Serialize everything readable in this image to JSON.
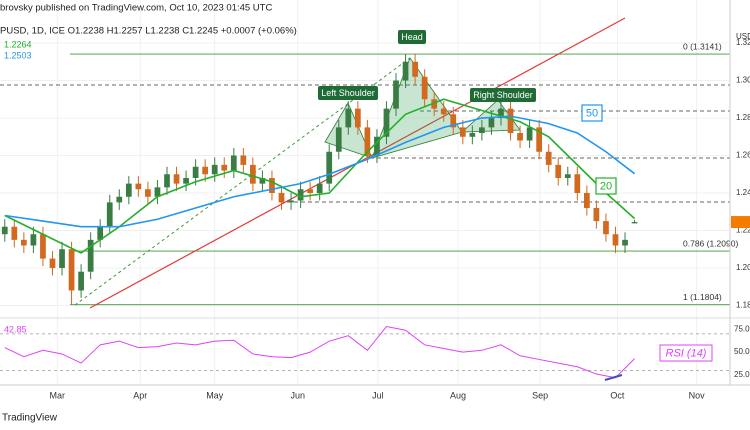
{
  "header": "brovsky published on TradingView.com, Oct 10, 2023 01:45 UTC",
  "symbol_line": "PUSD, 1D, ICE O1.2238 H1.2257 L1.2238 C1.2245 +0.0007 (+0.06%)",
  "currency": "USD",
  "footer": "TradingView",
  "annotations": {
    "head": "Head",
    "left_shoulder": "Left Shoulder",
    "right_shoulder": "Right Shoulder"
  },
  "chart_data": {
    "type": "candlestick",
    "xlim": [
      -0.5,
      76
    ],
    "xticks": [
      {
        "value": 5.5,
        "label": "Mar"
      },
      {
        "value": 14.2,
        "label": "Apr"
      },
      {
        "value": 22,
        "label": "May"
      },
      {
        "value": 30.7,
        "label": "Jun"
      },
      {
        "value": 39.1,
        "label": "Jul"
      },
      {
        "value": 47.5,
        "label": "Aug"
      },
      {
        "value": 56.1,
        "label": "Sep"
      },
      {
        "value": 64.2,
        "label": "Oct"
      },
      {
        "value": 72.5,
        "label": "Nov"
      }
    ],
    "ylim": [
      1.1733,
      1.3323
    ],
    "yticks": [
      1.18,
      {
        "value": 1.2,
        "label": "1.20"
      },
      1.22,
      1.24,
      1.26,
      1.28,
      {
        "value": 1.3,
        "label": "1.30"
      },
      1.32
    ],
    "grid": true,
    "candles": {
      "up_color": "#3a7d44",
      "down_color": "#d2691e",
      "open": [
        1.218,
        1.222,
        1.215,
        1.212,
        1.218,
        1.205,
        1.2,
        1.21,
        1.188,
        1.198,
        1.215,
        1.222,
        1.235,
        1.238,
        1.245,
        1.242,
        1.238,
        1.243,
        1.25,
        1.245,
        1.248,
        1.254,
        1.25,
        1.255,
        1.252,
        1.26,
        1.255,
        1.245,
        1.248,
        1.24,
        1.235,
        1.236,
        1.242,
        1.24,
        1.245,
        1.262,
        1.275,
        1.285,
        1.275,
        1.26,
        1.27,
        1.285,
        1.3,
        1.31,
        1.302,
        1.29,
        1.285,
        1.282,
        1.275,
        1.27,
        1.272,
        1.275,
        1.28,
        1.285,
        1.272,
        1.268,
        1.275,
        1.262,
        1.255,
        1.248,
        1.25,
        1.24,
        1.232,
        1.225,
        1.218,
        1.212,
        1.2238
      ],
      "high": [
        1.226,
        1.226,
        1.219,
        1.222,
        1.222,
        1.209,
        1.214,
        1.214,
        1.202,
        1.219,
        1.226,
        1.239,
        1.242,
        1.249,
        1.249,
        1.246,
        1.247,
        1.254,
        1.254,
        1.252,
        1.258,
        1.258,
        1.259,
        1.259,
        1.264,
        1.264,
        1.259,
        1.252,
        1.252,
        1.244,
        1.24,
        1.246,
        1.246,
        1.249,
        1.266,
        1.279,
        1.289,
        1.289,
        1.279,
        1.274,
        1.289,
        1.304,
        1.3141,
        1.314,
        1.306,
        1.294,
        1.289,
        1.286,
        1.279,
        1.276,
        1.279,
        1.284,
        1.289,
        1.289,
        1.276,
        1.279,
        1.279,
        1.266,
        1.259,
        1.254,
        1.254,
        1.244,
        1.236,
        1.229,
        1.222,
        1.219,
        1.2257
      ],
      "low": [
        1.214,
        1.211,
        1.208,
        1.208,
        1.201,
        1.196,
        1.196,
        1.1804,
        1.184,
        1.194,
        1.211,
        1.218,
        1.231,
        1.234,
        1.238,
        1.234,
        1.234,
        1.239,
        1.241,
        1.241,
        1.244,
        1.246,
        1.246,
        1.248,
        1.248,
        1.251,
        1.241,
        1.241,
        1.236,
        1.231,
        1.231,
        1.232,
        1.236,
        1.236,
        1.241,
        1.258,
        1.271,
        1.271,
        1.256,
        1.256,
        1.266,
        1.281,
        1.296,
        1.298,
        1.286,
        1.281,
        1.278,
        1.271,
        1.266,
        1.266,
        1.268,
        1.271,
        1.276,
        1.268,
        1.264,
        1.264,
        1.258,
        1.251,
        1.244,
        1.244,
        1.236,
        1.228,
        1.221,
        1.214,
        1.208,
        1.208,
        1.2238
      ],
      "close": [
        1.222,
        1.215,
        1.212,
        1.218,
        1.205,
        1.2,
        1.21,
        1.188,
        1.198,
        1.215,
        1.222,
        1.235,
        1.238,
        1.245,
        1.242,
        1.238,
        1.243,
        1.25,
        1.245,
        1.248,
        1.254,
        1.25,
        1.255,
        1.252,
        1.26,
        1.255,
        1.245,
        1.248,
        1.24,
        1.235,
        1.236,
        1.242,
        1.24,
        1.245,
        1.262,
        1.275,
        1.285,
        1.275,
        1.26,
        1.27,
        1.285,
        1.3,
        1.31,
        1.302,
        1.29,
        1.285,
        1.282,
        1.275,
        1.27,
        1.272,
        1.275,
        1.28,
        1.285,
        1.272,
        1.268,
        1.275,
        1.262,
        1.255,
        1.248,
        1.25,
        1.24,
        1.232,
        1.225,
        1.218,
        1.212,
        1.215,
        1.2245
      ]
    },
    "series": [
      {
        "name": "20",
        "color": "#22b02a",
        "x": [
          0,
          4,
          8,
          12,
          16,
          20,
          24,
          28,
          31,
          34,
          38,
          42,
          46,
          50,
          54,
          57,
          60,
          63,
          66
        ],
        "values": [
          1.228,
          1.218,
          1.208,
          1.222,
          1.238,
          1.246,
          1.252,
          1.246,
          1.238,
          1.24,
          1.262,
          1.282,
          1.29,
          1.284,
          1.278,
          1.27,
          1.255,
          1.24,
          1.2264
        ]
      },
      {
        "name": "50",
        "color": "#2196f3",
        "x": [
          0,
          4,
          8,
          12,
          16,
          20,
          24,
          28,
          31,
          34,
          38,
          42,
          46,
          50,
          53,
          57,
          60,
          63,
          66
        ],
        "values": [
          1.228,
          1.225,
          1.222,
          1.222,
          1.226,
          1.232,
          1.238,
          1.242,
          1.245,
          1.25,
          1.258,
          1.267,
          1.275,
          1.28,
          1.281,
          1.277,
          1.272,
          1.262,
          1.2503
        ]
      }
    ],
    "fib": [
      {
        "value": 1.3141,
        "label": "0 (1.3141)"
      },
      {
        "value": 1.209,
        "label": "0.786 (1.2090)"
      },
      {
        "value": 1.1804,
        "label": "1 (1.1804)"
      }
    ],
    "rsi": {
      "name": "RSI (14)",
      "color": "#e040fb",
      "ylim": [
        14,
        83
      ],
      "yticks": [
        {
          "value": 25,
          "label": "25.00"
        },
        {
          "value": 50,
          "label": "50.00"
        },
        {
          "value": 75,
          "label": "75.00"
        }
      ],
      "levels": [
        70,
        30
      ],
      "x": [
        0,
        2,
        4,
        6,
        8,
        10,
        12,
        14,
        16,
        18,
        20,
        22,
        24,
        26,
        28,
        30,
        32,
        34,
        36,
        38,
        40,
        42,
        44,
        46,
        48,
        50,
        52,
        54,
        56,
        58,
        60,
        62,
        64,
        66
      ],
      "values": [
        55,
        45,
        52,
        48,
        38,
        58,
        62,
        55,
        56,
        60,
        58,
        62,
        63,
        48,
        45,
        44,
        50,
        62,
        68,
        52,
        78,
        74,
        58,
        54,
        50,
        52,
        58,
        46,
        42,
        38,
        34,
        26,
        22,
        42.85
      ]
    }
  }
}
